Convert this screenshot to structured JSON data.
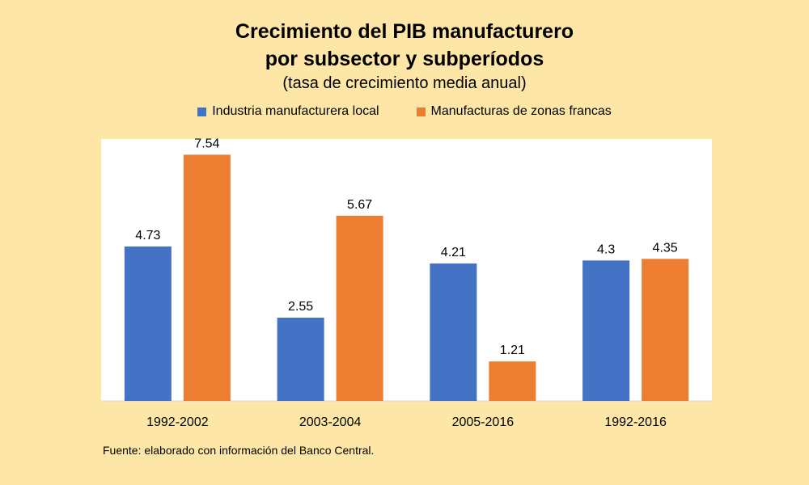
{
  "chart": {
    "title_line_1": "Crecimiento del PIB manufacturero",
    "title_line_2": "por subsector y subperíodos",
    "subtitle": "(tasa de crecimiento media anual)",
    "source": "Fuente: elaborado con información del Banco Central."
  },
  "colors": {
    "background": "#fee7a6",
    "plot_area": "#ffffff",
    "series_local": "#4472c4",
    "series_zonas": "#ed7d31"
  },
  "chart_data": {
    "type": "bar",
    "title": "Crecimiento del PIB manufacturero por subsector y subperíodos",
    "subtitle": "(tasa de crecimiento media anual)",
    "xlabel": "",
    "ylabel": "",
    "categories": [
      "1992-2002",
      "2003-2004",
      "2005-2016",
      "1992-2016"
    ],
    "series": [
      {
        "name": "Industria manufacturera local",
        "values": [
          4.73,
          2.55,
          4.21,
          4.3
        ],
        "labels": [
          "4.73",
          "2.55",
          "4.21",
          "4.3"
        ]
      },
      {
        "name": "Manufacturas de zonas francas",
        "values": [
          7.54,
          5.67,
          1.21,
          4.35
        ],
        "labels": [
          "7.54",
          "5.67",
          "1.21",
          "4.35"
        ]
      }
    ],
    "ylim": [
      0,
      8
    ],
    "grid": false,
    "legend": "top"
  }
}
